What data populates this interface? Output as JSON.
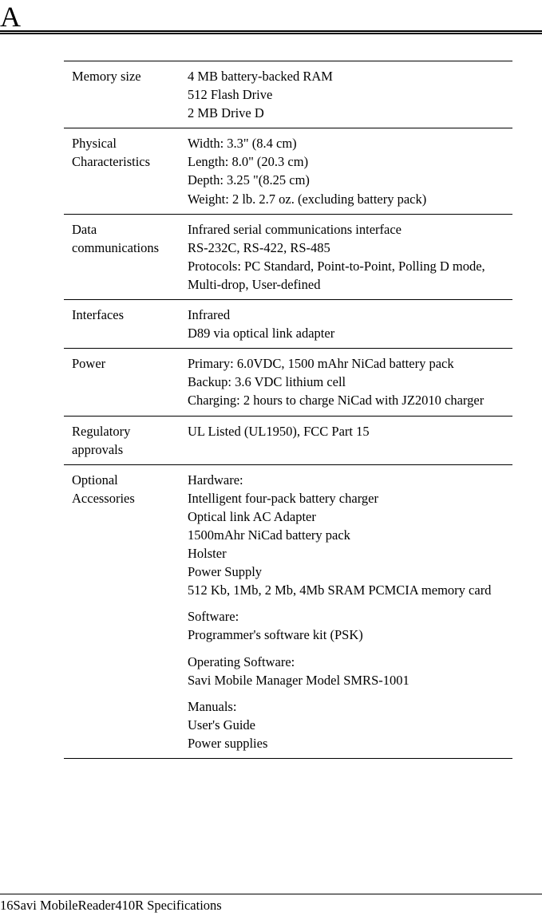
{
  "appendix_letter": "A",
  "footer": "16Savi MobileReader410R Specifications",
  "rows": [
    {
      "label": "Memory size",
      "sections": [
        {
          "lines": [
            "4 MB battery-backed RAM",
            "512 Flash Drive",
            "2 MB Drive D"
          ]
        }
      ]
    },
    {
      "label": "Physical Characteristics",
      "sections": [
        {
          "lines": [
            "Width: 3.3\" (8.4 cm)",
            "Length: 8.0\" (20.3 cm)",
            "Depth: 3.25 \"(8.25 cm)",
            "Weight: 2 lb. 2.7 oz. (excluding battery pack)"
          ]
        }
      ]
    },
    {
      "label": "Data communications",
      "sections": [
        {
          "lines": [
            "Infrared serial communications interface",
            "RS-232C, RS-422, RS-485",
            "Protocols: PC Standard, Point-to-Point, Polling D mode, Multi-drop, User-defined"
          ]
        }
      ]
    },
    {
      "label": "Interfaces",
      "sections": [
        {
          "lines": [
            "Infrared",
            "D89 via optical link adapter"
          ]
        }
      ]
    },
    {
      "label": "Power",
      "sections": [
        {
          "lines": [
            "Primary: 6.0VDC, 1500 mAhr NiCad battery pack",
            "Backup: 3.6 VDC lithium cell",
            "Charging: 2 hours to charge NiCad with JZ2010 charger"
          ]
        }
      ]
    },
    {
      "label": "Regulatory approvals",
      "sections": [
        {
          "lines": [
            "UL Listed (UL1950), FCC Part 15"
          ]
        }
      ]
    },
    {
      "label": "Optional Accessories",
      "sections": [
        {
          "lines": [
            "Hardware:",
            "Intelligent four-pack battery charger",
            "Optical link AC Adapter",
            "1500mAhr NiCad battery pack",
            "Holster",
            "Power Supply",
            "512 Kb, 1Mb, 2 Mb, 4Mb SRAM PCMCIA memory card"
          ]
        },
        {
          "lines": [
            "Software:",
            "Programmer's software kit (PSK)"
          ]
        },
        {
          "lines": [
            "Operating Software:",
            "Savi Mobile Manager Model SMRS-1001"
          ]
        },
        {
          "lines": [
            "Manuals:",
            "User's Guide",
            "Power supplies"
          ]
        }
      ]
    }
  ]
}
